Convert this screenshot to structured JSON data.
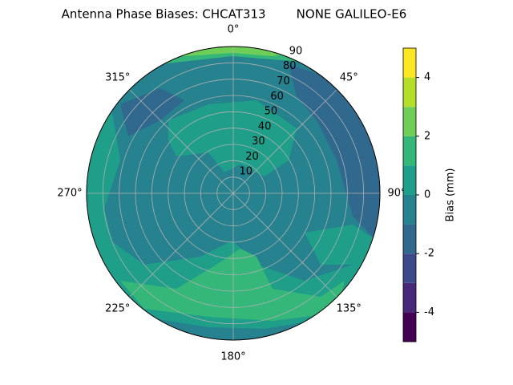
{
  "chart_data": {
    "type": "polar-contour",
    "title": "Antenna Phase Biases: CHCAT313        NONE GALILEO-E6",
    "colorbar_label": "Bias (mm)",
    "levels": [
      -5,
      -4,
      -3,
      -2,
      -1,
      0,
      1,
      2,
      3,
      4,
      5
    ],
    "colors": [
      "#440154",
      "#482878",
      "#3e4989",
      "#31688e",
      "#26828e",
      "#1f9e89",
      "#35b779",
      "#6ece58",
      "#b5de2b",
      "#fde725"
    ],
    "cticks": [
      -4,
      -2,
      0,
      2,
      4
    ],
    "rlim": [
      0,
      90
    ],
    "rticks": [
      10,
      20,
      30,
      40,
      50,
      60,
      70,
      80,
      90
    ],
    "angle_ticks": [
      {
        "value": 0,
        "label": "0°"
      },
      {
        "value": 45,
        "label": "45°"
      },
      {
        "value": 90,
        "label": "90°"
      },
      {
        "value": 135,
        "label": "135°"
      },
      {
        "value": 180,
        "label": "180°"
      },
      {
        "value": 225,
        "label": "225°"
      },
      {
        "value": 270,
        "label": "270°"
      },
      {
        "value": 315,
        "label": "315°"
      }
    ],
    "grid": true
  }
}
